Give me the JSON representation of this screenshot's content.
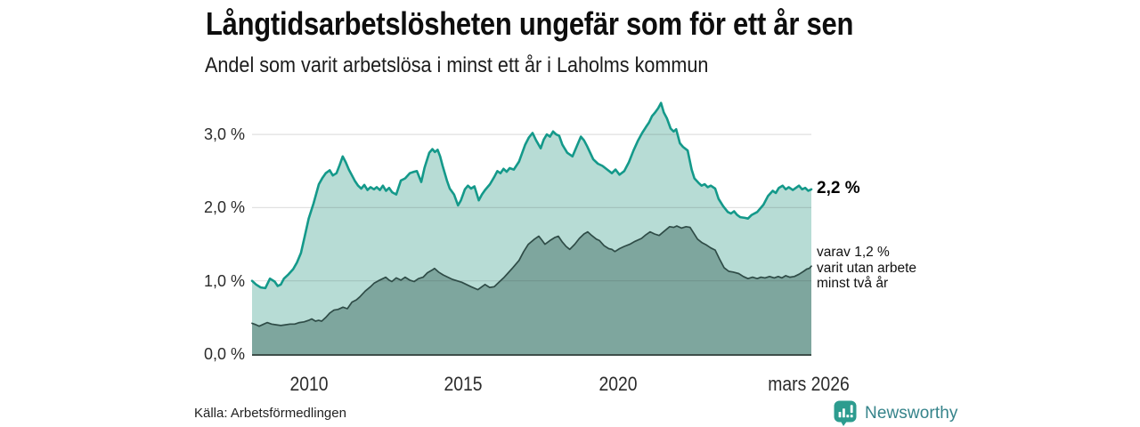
{
  "chart_data": {
    "type": "area",
    "title": "Långtidsarbetslösheten ungefär som för ett år sen",
    "subtitle": "Andel som varit arbetslösa i minst ett år i Laholms kommun",
    "source": "Källa: Arbetsförmedlingen",
    "x_domain": [
      2008.17,
      2026.25
    ],
    "ylim": [
      0,
      3.55
    ],
    "grid": "horizontal",
    "legend": "none",
    "yticks": [
      {
        "value": 0,
        "label": "0,0 %"
      },
      {
        "value": 1,
        "label": "1,0 %"
      },
      {
        "value": 2,
        "label": "2,0 %"
      },
      {
        "value": 3,
        "label": "3,0 %"
      }
    ],
    "xticks": [
      {
        "value": 2010,
        "label": "2010"
      },
      {
        "value": 2015,
        "label": "2015"
      },
      {
        "value": 2020,
        "label": "2020"
      },
      {
        "value": 2026.17,
        "label": "mars 2026"
      }
    ],
    "colors": {
      "axis": "#3e4f4a",
      "gridline": "rgba(40,40,40,0.14)",
      "tick_text": "#2b2b2b"
    },
    "series": [
      {
        "id": "arbetslosa-minst-ett-ar",
        "end_label": "2,2 %",
        "line_color": "#14998a",
        "fill_color": "#b7dcd5",
        "line_width": 2.6,
        "points": [
          [
            2008.17,
            1.0
          ],
          [
            2008.3,
            0.95
          ],
          [
            2008.45,
            0.91
          ],
          [
            2008.6,
            0.9
          ],
          [
            2008.75,
            1.03
          ],
          [
            2008.9,
            0.99
          ],
          [
            2009.0,
            0.93
          ],
          [
            2009.1,
            0.95
          ],
          [
            2009.2,
            1.03
          ],
          [
            2009.35,
            1.09
          ],
          [
            2009.5,
            1.16
          ],
          [
            2009.62,
            1.25
          ],
          [
            2009.75,
            1.38
          ],
          [
            2009.87,
            1.6
          ],
          [
            2010.0,
            1.85
          ],
          [
            2010.16,
            2.06
          ],
          [
            2010.33,
            2.32
          ],
          [
            2010.45,
            2.41
          ],
          [
            2010.55,
            2.47
          ],
          [
            2010.68,
            2.51
          ],
          [
            2010.78,
            2.44
          ],
          [
            2010.9,
            2.47
          ],
          [
            2011.0,
            2.58
          ],
          [
            2011.1,
            2.7
          ],
          [
            2011.2,
            2.62
          ],
          [
            2011.3,
            2.52
          ],
          [
            2011.4,
            2.44
          ],
          [
            2011.5,
            2.36
          ],
          [
            2011.6,
            2.3
          ],
          [
            2011.7,
            2.26
          ],
          [
            2011.8,
            2.31
          ],
          [
            2011.9,
            2.24
          ],
          [
            2012.0,
            2.28
          ],
          [
            2012.11,
            2.25
          ],
          [
            2012.2,
            2.28
          ],
          [
            2012.3,
            2.24
          ],
          [
            2012.4,
            2.3
          ],
          [
            2012.5,
            2.23
          ],
          [
            2012.6,
            2.27
          ],
          [
            2012.7,
            2.21
          ],
          [
            2012.83,
            2.18
          ],
          [
            2012.98,
            2.37
          ],
          [
            2013.12,
            2.4
          ],
          [
            2013.27,
            2.47
          ],
          [
            2013.4,
            2.49
          ],
          [
            2013.5,
            2.5
          ],
          [
            2013.64,
            2.35
          ],
          [
            2013.75,
            2.55
          ],
          [
            2013.9,
            2.75
          ],
          [
            2014.0,
            2.8
          ],
          [
            2014.08,
            2.76
          ],
          [
            2014.17,
            2.79
          ],
          [
            2014.25,
            2.7
          ],
          [
            2014.33,
            2.57
          ],
          [
            2014.47,
            2.37
          ],
          [
            2014.56,
            2.26
          ],
          [
            2014.7,
            2.18
          ],
          [
            2014.83,
            2.03
          ],
          [
            2014.92,
            2.1
          ],
          [
            2015.05,
            2.25
          ],
          [
            2015.15,
            2.3
          ],
          [
            2015.25,
            2.26
          ],
          [
            2015.36,
            2.29
          ],
          [
            2015.5,
            2.1
          ],
          [
            2015.6,
            2.18
          ],
          [
            2015.7,
            2.24
          ],
          [
            2015.86,
            2.32
          ],
          [
            2016.0,
            2.42
          ],
          [
            2016.1,
            2.5
          ],
          [
            2016.2,
            2.47
          ],
          [
            2016.3,
            2.53
          ],
          [
            2016.4,
            2.49
          ],
          [
            2016.5,
            2.54
          ],
          [
            2016.63,
            2.52
          ],
          [
            2016.8,
            2.63
          ],
          [
            2017.0,
            2.86
          ],
          [
            2017.12,
            2.96
          ],
          [
            2017.24,
            3.02
          ],
          [
            2017.35,
            2.92
          ],
          [
            2017.5,
            2.81
          ],
          [
            2017.6,
            2.93
          ],
          [
            2017.7,
            3.0
          ],
          [
            2017.8,
            2.97
          ],
          [
            2017.9,
            3.04
          ],
          [
            2018.0,
            3.0
          ],
          [
            2018.1,
            2.98
          ],
          [
            2018.2,
            2.86
          ],
          [
            2018.36,
            2.75
          ],
          [
            2018.53,
            2.7
          ],
          [
            2018.65,
            2.82
          ],
          [
            2018.8,
            2.97
          ],
          [
            2018.9,
            2.92
          ],
          [
            2019.0,
            2.84
          ],
          [
            2019.2,
            2.66
          ],
          [
            2019.35,
            2.6
          ],
          [
            2019.5,
            2.57
          ],
          [
            2019.65,
            2.52
          ],
          [
            2019.8,
            2.47
          ],
          [
            2019.92,
            2.52
          ],
          [
            2020.05,
            2.45
          ],
          [
            2020.2,
            2.5
          ],
          [
            2020.35,
            2.62
          ],
          [
            2020.5,
            2.78
          ],
          [
            2020.65,
            2.92
          ],
          [
            2020.78,
            3.02
          ],
          [
            2020.9,
            3.1
          ],
          [
            2021.0,
            3.16
          ],
          [
            2021.1,
            3.25
          ],
          [
            2021.2,
            3.3
          ],
          [
            2021.3,
            3.36
          ],
          [
            2021.39,
            3.43
          ],
          [
            2021.48,
            3.3
          ],
          [
            2021.58,
            3.22
          ],
          [
            2021.7,
            3.08
          ],
          [
            2021.8,
            3.04
          ],
          [
            2021.88,
            3.07
          ],
          [
            2022.0,
            2.88
          ],
          [
            2022.1,
            2.83
          ],
          [
            2022.25,
            2.78
          ],
          [
            2022.38,
            2.52
          ],
          [
            2022.47,
            2.4
          ],
          [
            2022.6,
            2.34
          ],
          [
            2022.7,
            2.3
          ],
          [
            2022.8,
            2.32
          ],
          [
            2022.9,
            2.28
          ],
          [
            2023.0,
            2.3
          ],
          [
            2023.14,
            2.26
          ],
          [
            2023.25,
            2.12
          ],
          [
            2023.4,
            2.02
          ],
          [
            2023.55,
            1.94
          ],
          [
            2023.65,
            1.92
          ],
          [
            2023.75,
            1.95
          ],
          [
            2023.85,
            1.9
          ],
          [
            2023.95,
            1.87
          ],
          [
            2024.1,
            1.86
          ],
          [
            2024.2,
            1.85
          ],
          [
            2024.32,
            1.9
          ],
          [
            2024.5,
            1.94
          ],
          [
            2024.7,
            2.04
          ],
          [
            2024.85,
            2.16
          ],
          [
            2025.0,
            2.23
          ],
          [
            2025.1,
            2.2
          ],
          [
            2025.2,
            2.27
          ],
          [
            2025.32,
            2.3
          ],
          [
            2025.42,
            2.25
          ],
          [
            2025.52,
            2.28
          ],
          [
            2025.65,
            2.24
          ],
          [
            2025.75,
            2.27
          ],
          [
            2025.85,
            2.3
          ],
          [
            2025.95,
            2.25
          ],
          [
            2026.05,
            2.27
          ],
          [
            2026.15,
            2.23
          ],
          [
            2026.25,
            2.25
          ]
        ]
      },
      {
        "id": "arbetslosa-minst-tva-ar",
        "end_label_lines": [
          "varav 1,2 %",
          "varit utan arbete",
          "minst två år"
        ],
        "line_color": "#2f4c47",
        "fill_color": "#7ea69e",
        "line_width": 1.7,
        "points": [
          [
            2008.17,
            0.42
          ],
          [
            2008.3,
            0.4
          ],
          [
            2008.4,
            0.38
          ],
          [
            2008.55,
            0.41
          ],
          [
            2008.66,
            0.43
          ],
          [
            2008.8,
            0.41
          ],
          [
            2008.95,
            0.4
          ],
          [
            2009.1,
            0.39
          ],
          [
            2009.25,
            0.4
          ],
          [
            2009.4,
            0.41
          ],
          [
            2009.55,
            0.41
          ],
          [
            2009.7,
            0.43
          ],
          [
            2009.85,
            0.44
          ],
          [
            2010.0,
            0.46
          ],
          [
            2010.1,
            0.48
          ],
          [
            2010.22,
            0.45
          ],
          [
            2010.32,
            0.46
          ],
          [
            2010.42,
            0.45
          ],
          [
            2010.55,
            0.5
          ],
          [
            2010.68,
            0.56
          ],
          [
            2010.82,
            0.6
          ],
          [
            2010.95,
            0.61
          ],
          [
            2011.11,
            0.64
          ],
          [
            2011.25,
            0.62
          ],
          [
            2011.4,
            0.71
          ],
          [
            2011.54,
            0.74
          ],
          [
            2011.65,
            0.78
          ],
          [
            2011.83,
            0.86
          ],
          [
            2012.0,
            0.92
          ],
          [
            2012.12,
            0.97
          ],
          [
            2012.25,
            1.0
          ],
          [
            2012.4,
            1.03
          ],
          [
            2012.49,
            1.05
          ],
          [
            2012.6,
            1.01
          ],
          [
            2012.69,
            0.99
          ],
          [
            2012.83,
            1.04
          ],
          [
            2012.98,
            1.01
          ],
          [
            2013.12,
            1.05
          ],
          [
            2013.27,
            1.01
          ],
          [
            2013.41,
            0.99
          ],
          [
            2013.55,
            1.03
          ],
          [
            2013.7,
            1.05
          ],
          [
            2013.84,
            1.11
          ],
          [
            2014.0,
            1.15
          ],
          [
            2014.07,
            1.17
          ],
          [
            2014.2,
            1.12
          ],
          [
            2014.35,
            1.08
          ],
          [
            2014.5,
            1.05
          ],
          [
            2014.65,
            1.02
          ],
          [
            2014.8,
            1.0
          ],
          [
            2014.95,
            0.98
          ],
          [
            2015.1,
            0.95
          ],
          [
            2015.25,
            0.92
          ],
          [
            2015.47,
            0.88
          ],
          [
            2015.6,
            0.92
          ],
          [
            2015.7,
            0.95
          ],
          [
            2015.85,
            0.91
          ],
          [
            2016.0,
            0.92
          ],
          [
            2016.15,
            0.98
          ],
          [
            2016.3,
            1.04
          ],
          [
            2016.43,
            1.1
          ],
          [
            2016.6,
            1.18
          ],
          [
            2016.8,
            1.28
          ],
          [
            2016.95,
            1.4
          ],
          [
            2017.1,
            1.5
          ],
          [
            2017.3,
            1.57
          ],
          [
            2017.44,
            1.61
          ],
          [
            2017.55,
            1.55
          ],
          [
            2017.64,
            1.5
          ],
          [
            2017.8,
            1.55
          ],
          [
            2017.95,
            1.59
          ],
          [
            2018.07,
            1.61
          ],
          [
            2018.2,
            1.53
          ],
          [
            2018.32,
            1.47
          ],
          [
            2018.44,
            1.43
          ],
          [
            2018.6,
            1.5
          ],
          [
            2018.75,
            1.58
          ],
          [
            2018.9,
            1.64
          ],
          [
            2019.02,
            1.67
          ],
          [
            2019.15,
            1.62
          ],
          [
            2019.3,
            1.57
          ],
          [
            2019.4,
            1.55
          ],
          [
            2019.55,
            1.48
          ],
          [
            2019.7,
            1.44
          ],
          [
            2019.8,
            1.43
          ],
          [
            2019.9,
            1.4
          ],
          [
            2020.05,
            1.44
          ],
          [
            2020.2,
            1.47
          ],
          [
            2020.38,
            1.5
          ],
          [
            2020.55,
            1.54
          ],
          [
            2020.76,
            1.58
          ],
          [
            2020.9,
            1.63
          ],
          [
            2021.04,
            1.67
          ],
          [
            2021.18,
            1.64
          ],
          [
            2021.33,
            1.62
          ],
          [
            2021.5,
            1.68
          ],
          [
            2021.67,
            1.74
          ],
          [
            2021.8,
            1.73
          ],
          [
            2021.9,
            1.75
          ],
          [
            2022.05,
            1.72
          ],
          [
            2022.2,
            1.74
          ],
          [
            2022.33,
            1.73
          ],
          [
            2022.45,
            1.65
          ],
          [
            2022.57,
            1.57
          ],
          [
            2022.72,
            1.52
          ],
          [
            2022.86,
            1.49
          ],
          [
            2023.0,
            1.45
          ],
          [
            2023.14,
            1.42
          ],
          [
            2023.28,
            1.3
          ],
          [
            2023.43,
            1.18
          ],
          [
            2023.58,
            1.13
          ],
          [
            2023.72,
            1.12
          ],
          [
            2023.9,
            1.1
          ],
          [
            2024.05,
            1.06
          ],
          [
            2024.2,
            1.03
          ],
          [
            2024.35,
            1.05
          ],
          [
            2024.5,
            1.03
          ],
          [
            2024.62,
            1.05
          ],
          [
            2024.75,
            1.04
          ],
          [
            2024.9,
            1.06
          ],
          [
            2025.05,
            1.04
          ],
          [
            2025.18,
            1.06
          ],
          [
            2025.3,
            1.04
          ],
          [
            2025.42,
            1.07
          ],
          [
            2025.55,
            1.05
          ],
          [
            2025.7,
            1.06
          ],
          [
            2025.85,
            1.09
          ],
          [
            2026.0,
            1.13
          ],
          [
            2026.1,
            1.16
          ],
          [
            2026.18,
            1.17
          ],
          [
            2026.25,
            1.2
          ]
        ]
      }
    ]
  },
  "branding": {
    "wordmark": "Newsworthy",
    "logo_icon": "bar-chart-exclamation-speech-bubble",
    "logo_color": "#2d9c8f",
    "wordmark_color": "#35838a"
  }
}
